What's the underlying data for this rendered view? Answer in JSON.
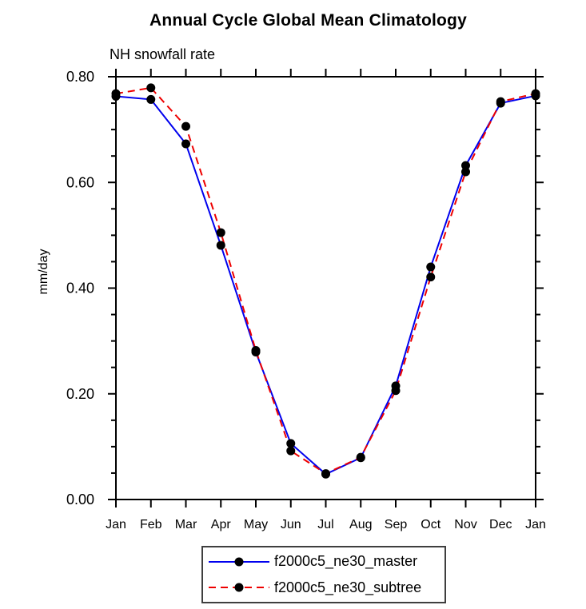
{
  "chart_data": {
    "type": "line",
    "title": "Annual Cycle Global Mean Climatology",
    "subtitle": "NH snowfall rate",
    "xlabel": "",
    "ylabel": "mm/day",
    "categories": [
      "Jan",
      "Feb",
      "Mar",
      "Apr",
      "May",
      "Jun",
      "Jul",
      "Aug",
      "Sep",
      "Oct",
      "Nov",
      "Dec",
      "Jan"
    ],
    "series": [
      {
        "name": "f2000c5_ne30_master",
        "color": "#0000ee",
        "line_style": "solid",
        "marker": "filled-circle",
        "marker_color": "#000000",
        "values": [
          0.763,
          0.757,
          0.673,
          0.481,
          0.279,
          0.106,
          0.048,
          0.079,
          0.215,
          0.44,
          0.632,
          0.75,
          0.764
        ]
      },
      {
        "name": "f2000c5_ne30_subtree",
        "color": "#ee0000",
        "line_style": "dashed",
        "marker": "filled-circle",
        "marker_color": "#000000",
        "values": [
          0.768,
          0.779,
          0.706,
          0.505,
          0.282,
          0.092,
          0.049,
          0.08,
          0.206,
          0.421,
          0.62,
          0.753,
          0.768
        ]
      }
    ],
    "ylim": [
      0.0,
      0.8
    ],
    "ytick_major": [
      0.0,
      0.2,
      0.4,
      0.6,
      0.8
    ],
    "ytick_major_labels": [
      "0.00",
      "0.20",
      "0.40",
      "0.60",
      "0.80"
    ],
    "ytick_minor_interval": 0.05,
    "grid": false,
    "frame_color": "#000000",
    "legend_position": "bottom-center"
  }
}
